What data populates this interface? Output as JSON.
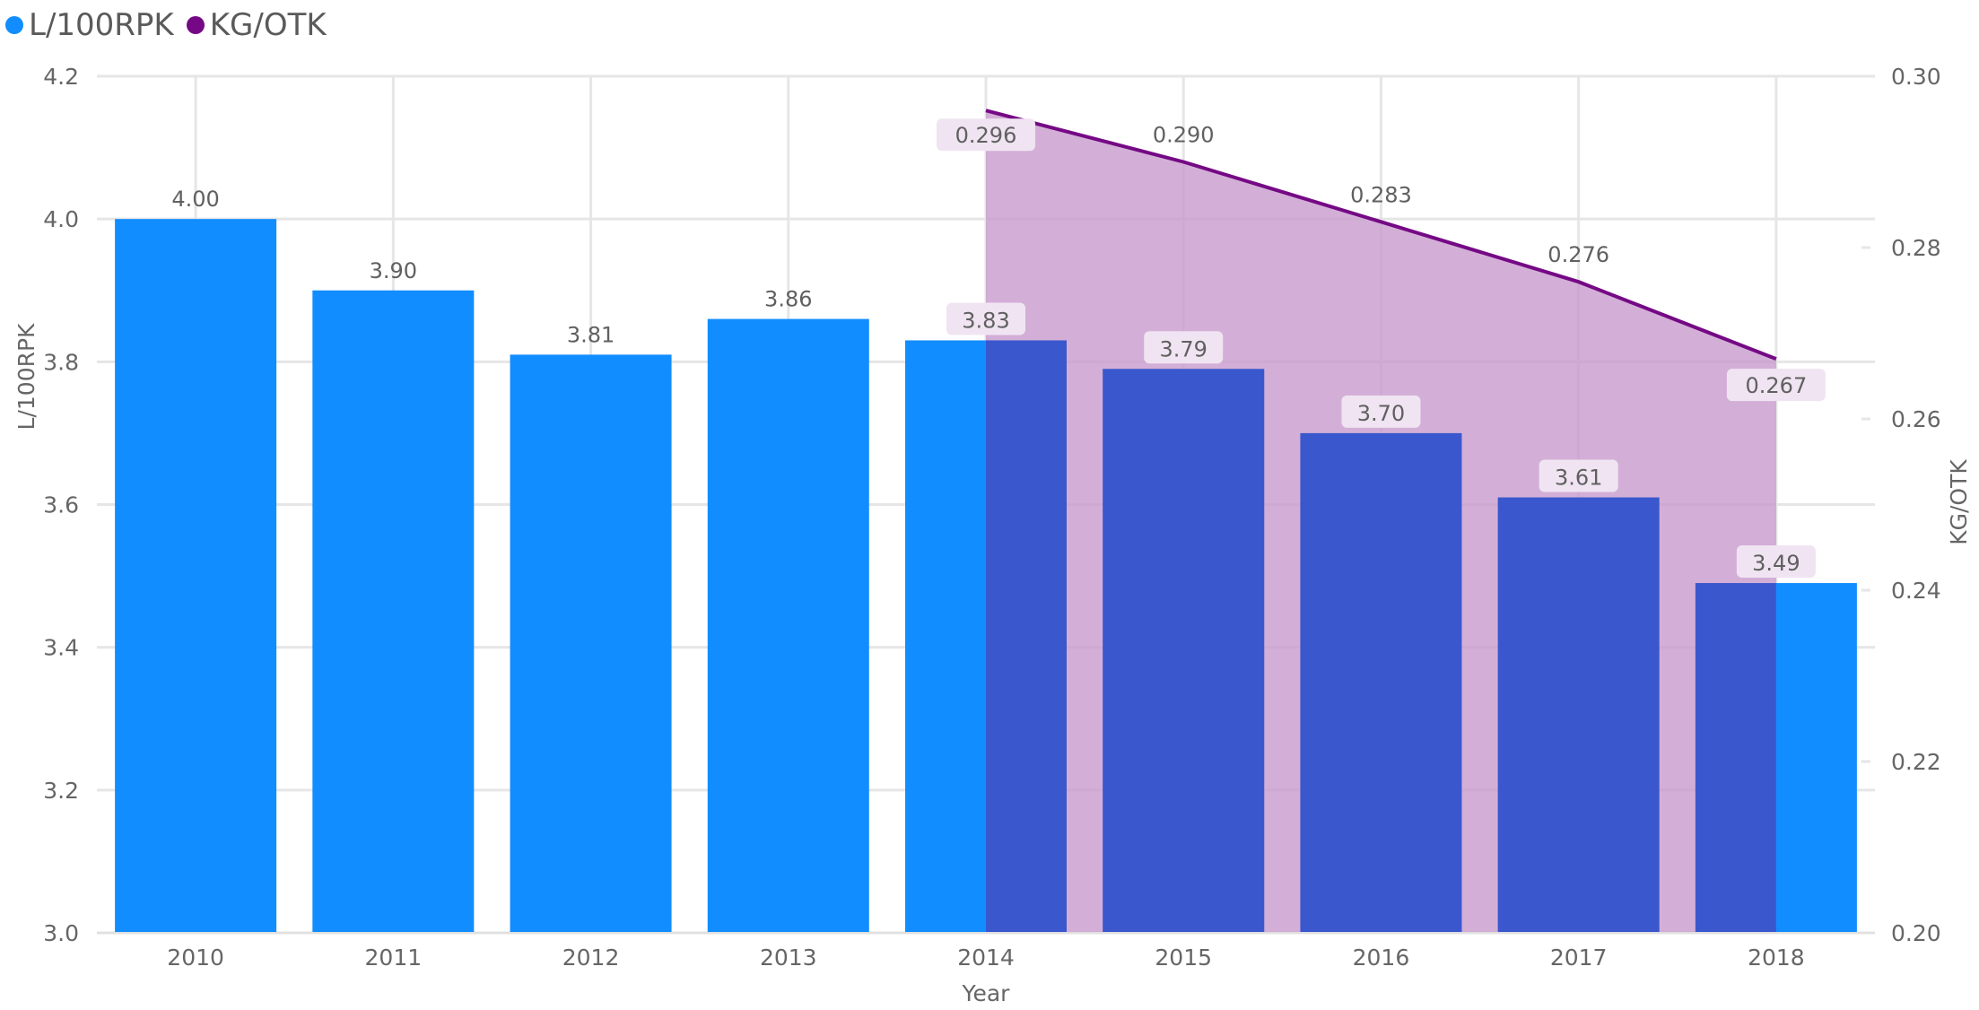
{
  "legend": {
    "items": [
      {
        "label": "L/100RPK",
        "color": "#118DFF"
      },
      {
        "label": "KG/OTK",
        "color": "#750985"
      }
    ]
  },
  "axes": {
    "x_title": "Year",
    "y_left_title": "L/100RPK",
    "y_right_title": "KG/OTK",
    "y_left_ticks": [
      "4.2",
      "4.0",
      "3.8",
      "3.6",
      "3.4",
      "3.2",
      "3.0"
    ],
    "y_right_ticks": [
      "0.30",
      "0.28",
      "0.26",
      "0.24",
      "0.22",
      "0.20"
    ],
    "x_ticks": [
      "2010",
      "2011",
      "2012",
      "2013",
      "2014",
      "2015",
      "2016",
      "2017",
      "2018"
    ]
  },
  "chart_data": {
    "type": "bar",
    "title": "",
    "xlabel": "Year",
    "ylabel": "L/100RPK",
    "y2label": "KG/OTK",
    "categories": [
      "2010",
      "2011",
      "2012",
      "2013",
      "2014",
      "2015",
      "2016",
      "2017",
      "2018"
    ],
    "ylim": [
      3.0,
      4.2
    ],
    "y2lim": [
      0.2,
      0.3
    ],
    "grid": true,
    "legend_position": "top-left",
    "series": [
      {
        "name": "L/100RPK",
        "type": "bar",
        "axis": "left",
        "color": "#118DFF",
        "values": [
          4.0,
          3.9,
          3.81,
          3.86,
          3.83,
          3.79,
          3.7,
          3.61,
          3.49
        ],
        "labels": [
          "4.00",
          "3.90",
          "3.81",
          "3.86",
          "3.83",
          "3.79",
          "3.70",
          "3.61",
          "3.49"
        ]
      },
      {
        "name": "KG/OTK",
        "type": "area",
        "axis": "right",
        "color": "#750985",
        "fill_color": "#C699CC",
        "values": [
          null,
          null,
          null,
          null,
          0.296,
          0.29,
          0.283,
          0.276,
          0.267
        ],
        "labels": [
          "",
          "",
          "",
          "",
          "0.296",
          "0.290",
          "0.283",
          "0.276",
          "0.267"
        ]
      }
    ]
  }
}
